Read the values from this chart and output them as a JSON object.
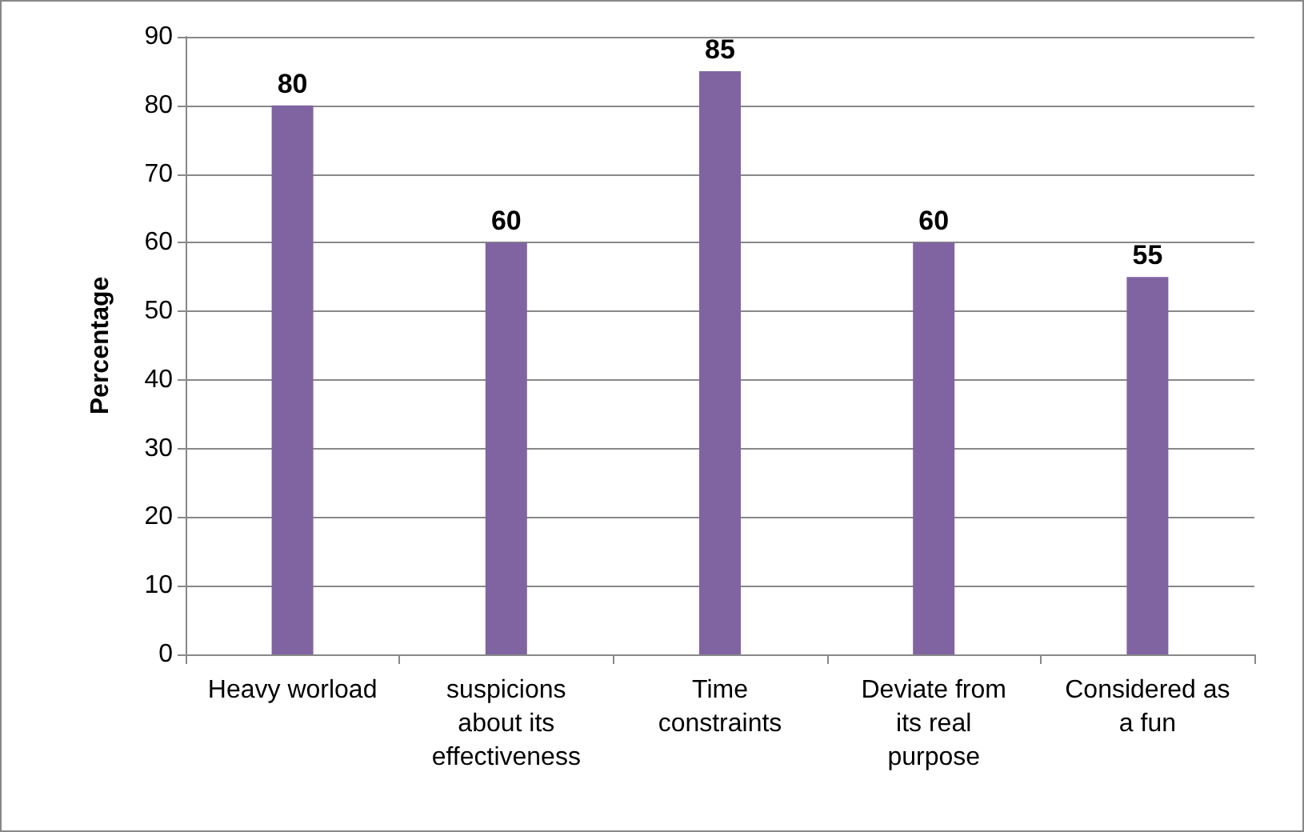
{
  "chart_data": {
    "type": "bar",
    "ylabel": "Percentage",
    "categories": [
      "Heavy worload",
      "suspicions about its effectiveness",
      "Time constraints",
      "Deviate from its real purpose",
      "Considered as a fun"
    ],
    "values": [
      80,
      60,
      85,
      60,
      55
    ],
    "color": "#8064a2",
    "ylim": [
      0,
      90
    ],
    "yticks": [
      0,
      10,
      20,
      30,
      40,
      50,
      60,
      70,
      80,
      90
    ],
    "grid": "y",
    "data_labels": true
  }
}
